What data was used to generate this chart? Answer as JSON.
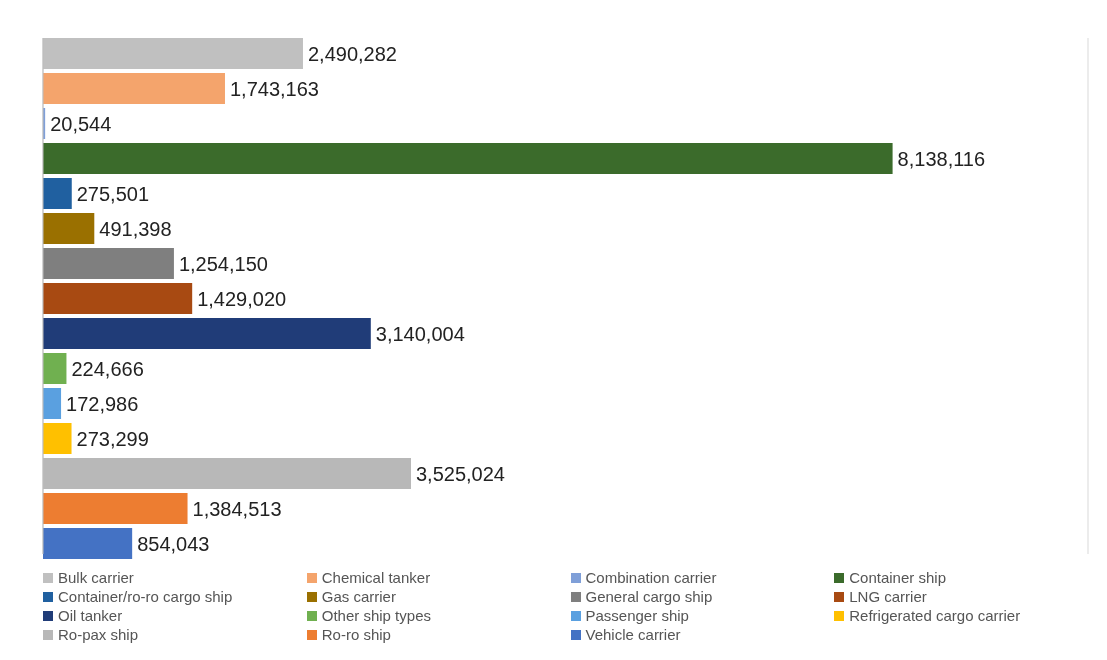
{
  "chart_data": {
    "type": "bar",
    "orientation": "horizontal",
    "categories": [
      null
    ],
    "series": [
      {
        "name": "Bulk carrier",
        "color": "#c0c0c0",
        "values": [
          2490282
        ],
        "value_labels": [
          "2,490,282"
        ]
      },
      {
        "name": "Chemical tanker",
        "color": "#f4a46c",
        "values": [
          1743163
        ],
        "value_labels": [
          "1,743,163"
        ]
      },
      {
        "name": "Combination carrier",
        "color": "#7f9fd8",
        "values": [
          20544
        ],
        "value_labels": [
          "20,544"
        ]
      },
      {
        "name": "Container ship",
        "color": "#3b6b2b",
        "values": [
          8138116
        ],
        "value_labels": [
          "8,138,116"
        ]
      },
      {
        "name": "Container/ro-ro cargo ship",
        "color": "#2060a0",
        "values": [
          275501
        ],
        "value_labels": [
          "275,501"
        ]
      },
      {
        "name": "Gas carrier",
        "color": "#9a7000",
        "values": [
          491398
        ],
        "value_labels": [
          "491,398"
        ]
      },
      {
        "name": "General cargo ship",
        "color": "#7f7f7f",
        "values": [
          1254150
        ],
        "value_labels": [
          "1,254,150"
        ]
      },
      {
        "name": "LNG carrier",
        "color": "#a84a12",
        "values": [
          1429020
        ],
        "value_labels": [
          "1,429,020"
        ]
      },
      {
        "name": "Oil tanker",
        "color": "#203c78",
        "values": [
          3140004
        ],
        "value_labels": [
          "3,140,004"
        ]
      },
      {
        "name": "Other ship types",
        "color": "#70b050",
        "values": [
          224666
        ],
        "value_labels": [
          "224,666"
        ]
      },
      {
        "name": "Passenger ship",
        "color": "#5aa0e0",
        "values": [
          172986
        ],
        "value_labels": [
          "172,986"
        ]
      },
      {
        "name": "Refrigerated cargo carrier",
        "color": "#ffc000",
        "values": [
          273299
        ],
        "value_labels": [
          "273,299"
        ]
      },
      {
        "name": "Ro-pax ship",
        "color": "#b8b8b8",
        "values": [
          3525024
        ],
        "value_labels": [
          "3,525,024"
        ]
      },
      {
        "name": "Ro-ro ship",
        "color": "#ed7d31",
        "values": [
          1384513
        ],
        "value_labels": [
          "1,384,513"
        ]
      },
      {
        "name": "Vehicle carrier",
        "color": "#4472c4",
        "values": [
          854043
        ],
        "value_labels": [
          "854,043"
        ]
      }
    ],
    "grid": "x",
    "legend": "bottom"
  }
}
